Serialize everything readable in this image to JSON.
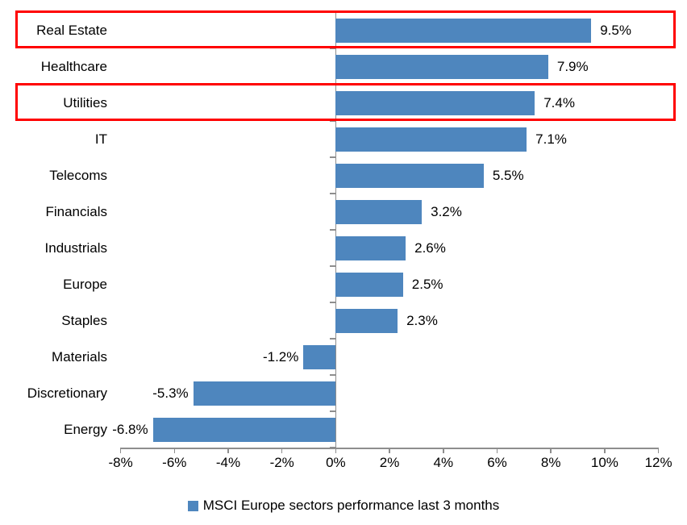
{
  "chart_data": {
    "type": "bar",
    "orientation": "horizontal",
    "categories": [
      "Real Estate",
      "Healthcare",
      "Utilities",
      "IT",
      "Telecoms",
      "Financials",
      "Industrials",
      "Europe",
      "Staples",
      "Materials",
      "Discretionary",
      "Energy"
    ],
    "values": [
      9.5,
      7.9,
      7.4,
      7.1,
      5.5,
      3.2,
      2.6,
      2.5,
      2.3,
      -1.2,
      -5.3,
      -6.8
    ],
    "value_labels": [
      "9.5%",
      "7.9%",
      "7.4%",
      "7.1%",
      "5.5%",
      "3.2%",
      "2.6%",
      "2.5%",
      "2.3%",
      "-1.2%",
      "-5.3%",
      "-6.8%"
    ],
    "legend": "MSCI Europe sectors performance last 3 months",
    "xlim": [
      -8,
      12
    ],
    "x_tick_labels": [
      "-8%",
      "-6%",
      "-4%",
      "-2%",
      "0%",
      "2%",
      "4%",
      "6%",
      "8%",
      "10%",
      "12%"
    ],
    "x_tick_values": [
      -8,
      -6,
      -4,
      -2,
      0,
      2,
      4,
      6,
      8,
      10,
      12
    ],
    "grid": "off",
    "legend_position": "bottom",
    "bar_color": "#4e86be",
    "axis_color": "#8e8e8e",
    "text_color": "#000000"
  },
  "annotations": {
    "highlighted_categories": [
      "Real Estate",
      "Utilities"
    ],
    "highlight_color": "#ff0000"
  }
}
